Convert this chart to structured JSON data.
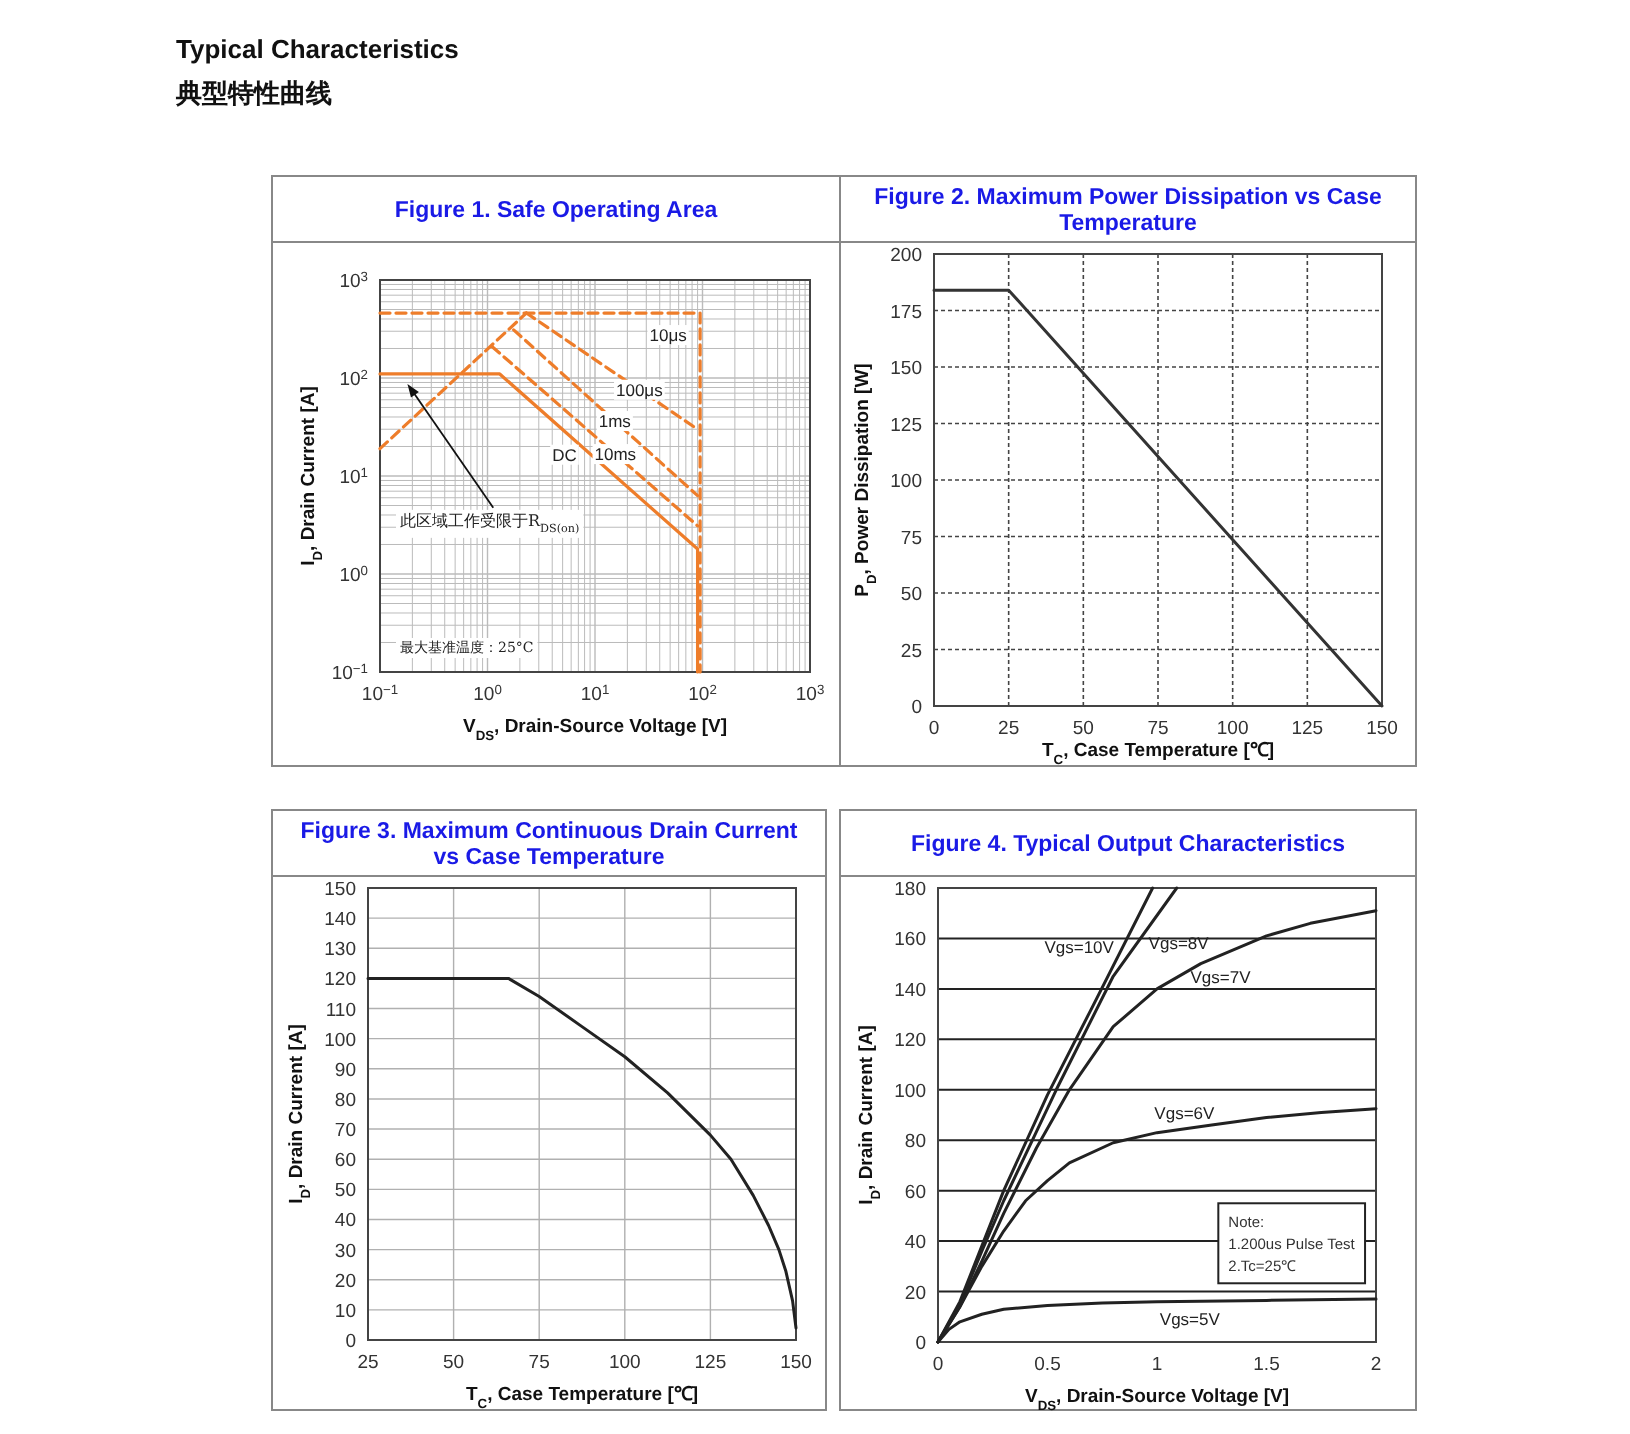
{
  "chart_data": [
    {
      "type": "line",
      "title": "Figure 1. Safe Operating Area",
      "xlabel": "V$_{DS}$, Drain-Source Voltage [V]",
      "ylabel": "I$_{D}$, Drain Current [A]",
      "log": "xy",
      "grid": true,
      "xlim": [
        0.1,
        1000
      ],
      "ylim": [
        0.1,
        1000
      ],
      "xticks": [
        {
          "value": 0.1,
          "label": "10$^{−1}$"
        },
        {
          "value": 1,
          "label": "10$^{0}$"
        },
        {
          "value": 10,
          "label": "10$^{1}$"
        },
        {
          "value": 100,
          "label": "10$^{2}$"
        },
        {
          "value": 1000,
          "label": "10$^{3}$"
        }
      ],
      "yticks": [
        {
          "value": 0.1,
          "label": "10$^{−1}$"
        },
        {
          "value": 1,
          "label": "10$^{0}$"
        },
        {
          "value": 10,
          "label": "10$^{1}$"
        },
        {
          "value": 100,
          "label": "10$^{2}$"
        },
        {
          "value": 1000,
          "label": "10$^{3}$"
        }
      ],
      "series": [
        {
          "name": "DC",
          "color": "#ee7d2a",
          "line_style": "solid",
          "x": [
            0.1,
            1.3,
            90,
            90
          ],
          "values": [
            110,
            110,
            1.8,
            0.1
          ]
        },
        {
          "name": "10ms",
          "color": "#ee7d2a",
          "line_style": "dashed",
          "x": [
            1.1,
            90
          ],
          "values": [
            210,
            3.1
          ]
        },
        {
          "name": "1ms",
          "color": "#ee7d2a",
          "line_style": "dashed",
          "x": [
            1.75,
            90
          ],
          "values": [
            310,
            6.3
          ]
        },
        {
          "name": "100μs",
          "color": "#ee7d2a",
          "line_style": "dashed",
          "x": [
            2.3,
            90
          ],
          "values": [
            460,
            30
          ]
        },
        {
          "name": "10μs",
          "color": "#ee7d2a",
          "line_style": "dashed",
          "x": [
            0.1,
            95,
            95
          ],
          "values": [
            460,
            460,
            0.1
          ]
        },
        {
          "color": "#ee7d2a",
          "line_style": "dashed",
          "x": [
            0.1,
            2.3
          ],
          "values": [
            19,
            460
          ]
        }
      ],
      "annotations": [
        "Typical Characteristics",
        "典型特性曲线",
        {
          "text": "此区域工作受限于R$_{DS(on)}$",
          "x": 0.18,
          "y": 87
        },
        "最大基准温度：25°C"
      ]
    },
    {
      "type": "line",
      "title": "Figure 2. Maximum Power Dissipation vs Case Temperature",
      "xlabel": "T$_{C}$, Case Temperature [℃]",
      "ylabel": "P$_{D}$, Power Dissipation [W]",
      "grid": true,
      "line_style": "solid",
      "xlim": [
        0,
        150
      ],
      "ylim": [
        0,
        200
      ],
      "xticks": [
        0,
        25,
        50,
        75,
        100,
        125,
        150
      ],
      "yticks": [
        0,
        25,
        50,
        75,
        100,
        125,
        150,
        175,
        200
      ],
      "series": [
        {
          "color": "#333333",
          "x": [
            0,
            25,
            150
          ],
          "values": [
            184,
            184,
            0
          ]
        }
      ]
    },
    {
      "type": "line",
      "title": "Figure 3. Maximum Continuous Drain Current vs Case Temperature",
      "xlabel": "T$_{C}$, Case Temperature [℃]",
      "ylabel": "I$_{D}$, Drain Current [A]",
      "grid": true,
      "line_style": "solid",
      "xlim": [
        25,
        150
      ],
      "ylim": [
        0,
        150
      ],
      "xticks": [
        25,
        50,
        75,
        100,
        125,
        150
      ],
      "yticks": [
        0,
        10,
        20,
        30,
        40,
        50,
        60,
        70,
        80,
        90,
        100,
        110,
        120,
        130,
        140,
        150
      ],
      "series": [
        {
          "color": "#222222",
          "x": [
            25,
            66,
            75,
            87.5,
            100,
            112.5,
            125,
            131,
            137.5,
            142,
            145,
            147,
            149,
            150
          ],
          "values": [
            120,
            120,
            114,
            104,
            94,
            82,
            68,
            60,
            48,
            38,
            30,
            23,
            13,
            4
          ]
        }
      ]
    },
    {
      "type": "line",
      "title": "Figure 4. Typical Output Characteristics",
      "xlabel": "V$_{DS}$, Drain-Source Voltage [V]",
      "ylabel": "I$_{D}$, Drain Current [A]",
      "grid": "y",
      "line_style": "solid",
      "xlim": [
        0,
        2
      ],
      "ylim": [
        0,
        180
      ],
      "xticks": [
        0,
        0.5,
        1,
        1.5,
        2
      ],
      "yticks": [
        0,
        20,
        40,
        60,
        80,
        100,
        120,
        140,
        160,
        180
      ],
      "series": [
        {
          "name": "Vgs=10V",
          "color": "#222222",
          "x": [
            0,
            0.1,
            0.2,
            0.3,
            0.5,
            0.7,
            0.98
          ],
          "values": [
            0,
            16,
            38,
            60,
            98,
            132,
            180
          ]
        },
        {
          "name": "Vgs=8V",
          "color": "#222222",
          "x": [
            0,
            0.1,
            0.2,
            0.3,
            0.54,
            0.8,
            1.09
          ],
          "values": [
            0,
            15,
            36,
            56,
            100,
            145,
            180
          ]
        },
        {
          "name": "Vgs=7V",
          "color": "#222222",
          "x": [
            0,
            0.1,
            0.2,
            0.3,
            0.45,
            0.6,
            0.8,
            1,
            1.2,
            1.5,
            1.7,
            2
          ],
          "values": [
            0,
            14,
            32,
            51,
            77,
            100,
            125,
            140,
            150,
            161,
            166,
            171
          ]
        },
        {
          "name": "Vgs=6V",
          "color": "#222222",
          "x": [
            0,
            0.1,
            0.2,
            0.3,
            0.4,
            0.5,
            0.6,
            0.8,
            1,
            1.25,
            1.5,
            1.75,
            2
          ],
          "values": [
            0,
            14,
            30,
            44,
            56,
            64,
            71,
            79,
            83,
            86,
            89,
            91,
            92.5
          ]
        },
        {
          "name": "Vgs=5V",
          "color": "#222222",
          "x": [
            0,
            0.05,
            0.1,
            0.2,
            0.3,
            0.5,
            0.75,
            1,
            1.5,
            2
          ],
          "values": [
            0,
            5,
            8,
            11,
            13,
            14.5,
            15.5,
            16,
            16.5,
            17
          ]
        }
      ],
      "annotations": [
        "Note:",
        "1.200us Pulse Test",
        "2.Tc=25℃"
      ]
    }
  ]
}
